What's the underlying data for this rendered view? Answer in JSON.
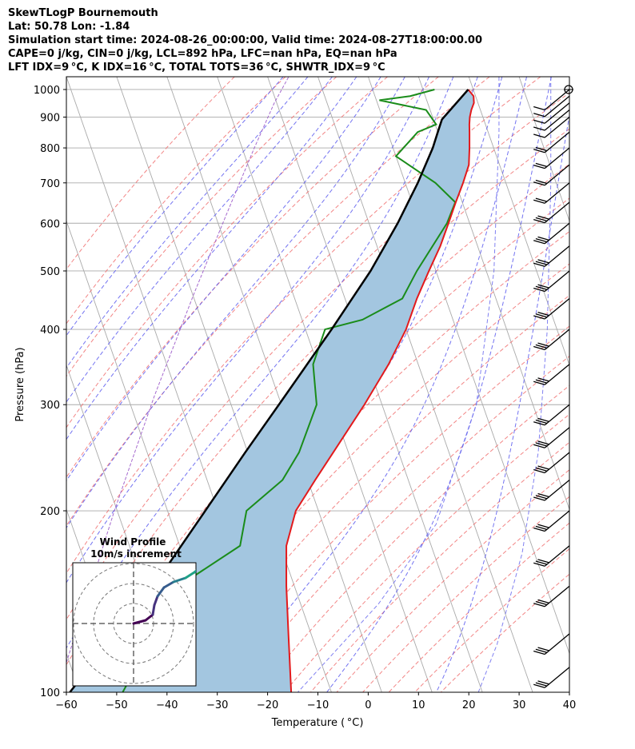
{
  "header": {
    "lines": [
      "SkewTLogP Bournemouth",
      "Lat: 50.78   Lon: -1.84",
      "Simulation start time: 2024-08-26_00:00:00, Valid time: 2024-08-27T18:00:00.00",
      "CAPE=0 j/kg, CIN=0 j/kg, LCL=892 hPa, LFC=nan hPa, EQ=nan hPa",
      "LFT IDX=9 °C, K IDX=16 °C, TOTAL TOTS=36 °C, SHWTR_IDX=9 °C"
    ]
  },
  "chart_data": {
    "type": "line",
    "skew": "skew-T log-p",
    "xlabel": "Temperature ( °C)",
    "ylabel": "Pressure (hPa)",
    "xlim": [
      -60,
      40
    ],
    "ylim": [
      1050,
      100
    ],
    "yscale": "log",
    "xticks": [
      -60,
      -50,
      -40,
      -30,
      -20,
      -10,
      0,
      10,
      20,
      30,
      40
    ],
    "yticks": [
      1000,
      900,
      800,
      700,
      600,
      500,
      400,
      300,
      200,
      100
    ],
    "grid": true,
    "colors": {
      "temperature": "#e31a1c",
      "dewpoint": "#1a8c1a",
      "parcel": "#000000",
      "shade": "#a3c6e0",
      "dry_adiabat": "#f07070",
      "moist_adiabat": "#5a5aee",
      "mixing_ratio": "#6b6bef",
      "isotherm": "#aaaaaa",
      "isobar": "#aaaaaa",
      "purple_line": "#9b59c9"
    },
    "temperature_profile": [
      [
        1000,
        19.0
      ],
      [
        975,
        19.6
      ],
      [
        950,
        19.2
      ],
      [
        925,
        18.2
      ],
      [
        900,
        17.4
      ],
      [
        875,
        16.8
      ],
      [
        850,
        16.3
      ],
      [
        800,
        15.2
      ],
      [
        750,
        13.9
      ],
      [
        700,
        11.5
      ],
      [
        650,
        8.7
      ],
      [
        600,
        5.8
      ],
      [
        550,
        2.6
      ],
      [
        500,
        -1.4
      ],
      [
        450,
        -5.7
      ],
      [
        400,
        -10.0
      ],
      [
        350,
        -15.9
      ],
      [
        300,
        -23.5
      ],
      [
        250,
        -33.0
      ],
      [
        225,
        -38.5
      ],
      [
        200,
        -44.5
      ],
      [
        175,
        -48.8
      ],
      [
        150,
        -51.6
      ],
      [
        125,
        -54.5
      ],
      [
        100,
        -58.0
      ]
    ],
    "dewpoint_profile": [
      [
        1000,
        12.3
      ],
      [
        975,
        7.0
      ],
      [
        960,
        0.6
      ],
      [
        925,
        9.2
      ],
      [
        875,
        10.2
      ],
      [
        850,
        6.0
      ],
      [
        775,
        0.0
      ],
      [
        700,
        6.0
      ],
      [
        650,
        8.6
      ],
      [
        600,
        5.5
      ],
      [
        500,
        -3.8
      ],
      [
        450,
        -8.6
      ],
      [
        415,
        -18.0
      ],
      [
        400,
        -26.1
      ],
      [
        350,
        -30.9
      ],
      [
        300,
        -33.0
      ],
      [
        250,
        -39.8
      ],
      [
        225,
        -45.0
      ],
      [
        200,
        -54.3
      ],
      [
        175,
        -58.0
      ],
      [
        155,
        -69.8
      ],
      [
        140,
        -75.0
      ],
      [
        120,
        -83.0
      ],
      [
        100,
        -91.5
      ]
    ],
    "parcel_profile": [
      [
        1000,
        19.0
      ],
      [
        892,
        11.7
      ],
      [
        850,
        10.0
      ],
      [
        800,
        7.9
      ],
      [
        700,
        2.5
      ],
      [
        600,
        -4.3
      ],
      [
        500,
        -13.0
      ],
      [
        400,
        -24.8
      ],
      [
        300,
        -40.5
      ],
      [
        250,
        -50.5
      ],
      [
        200,
        -62.5
      ],
      [
        150,
        -78.0
      ],
      [
        100,
        -102.0
      ]
    ],
    "wind_barbs": {
      "pressures": [
        1000,
        975,
        950,
        925,
        900,
        850,
        800,
        750,
        700,
        650,
        600,
        550,
        500,
        450,
        400,
        350,
        300,
        275,
        250,
        225,
        200,
        175,
        150,
        125,
        110
      ],
      "description": "wind barbs on right edge, westerly flow"
    },
    "inset": {
      "title": "Wind Profile",
      "subtitle": "10m/s increment",
      "type": "hodograph",
      "rings": 3,
      "track": [
        [
          0.0,
          0.0
        ],
        [
          1.5,
          0.4
        ],
        [
          2.4,
          1.1
        ],
        [
          2.6,
          2.3
        ],
        [
          3.0,
          3.4
        ],
        [
          3.8,
          4.5
        ],
        [
          5.0,
          5.2
        ],
        [
          6.5,
          5.7
        ],
        [
          7.6,
          6.4
        ],
        [
          8.7,
          7.3
        ],
        [
          9.6,
          8.5
        ],
        [
          10.2,
          7.3
        ],
        [
          11.5,
          6.6
        ],
        [
          12.7,
          6.4
        ],
        [
          12.8,
          6.9
        ]
      ]
    }
  }
}
